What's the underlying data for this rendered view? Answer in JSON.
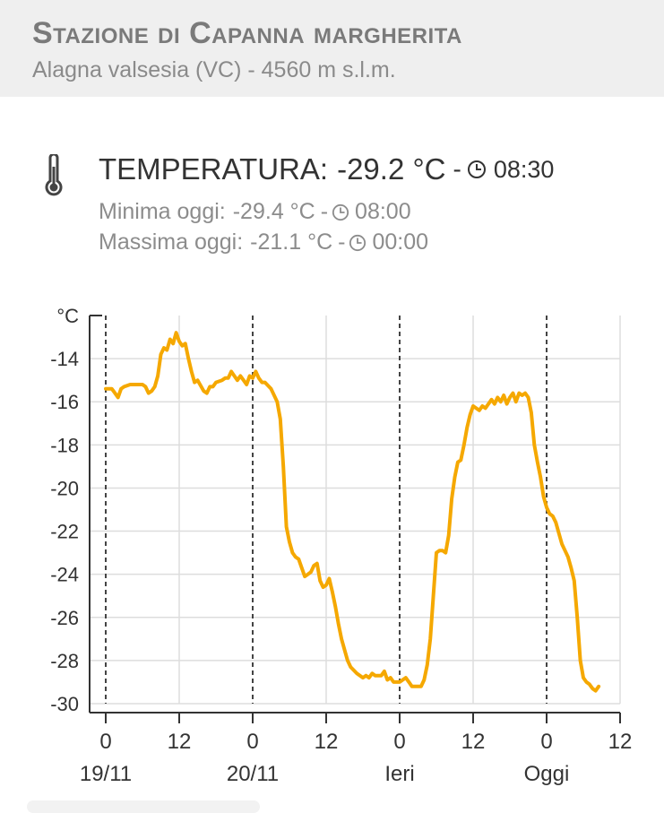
{
  "station": {
    "title": "Stazione di Capanna margherita",
    "subtitle": "Alagna valsesia (VC) - 4560 m s.l.m."
  },
  "temperature": {
    "label": "TEMPERATURA:",
    "value": "-29.2 °C",
    "separator": "-",
    "time": "08:30",
    "min_label": "Minima oggi:",
    "min_value": "-29.4 °C",
    "min_time": "08:00",
    "max_label": "Massima oggi:",
    "max_value": "-21.1 °C",
    "max_time": "00:00"
  },
  "icons": {
    "thermometer": "thermometer-icon",
    "clock": "clock-icon"
  },
  "colors": {
    "series": "#f5a800",
    "grid": "#dddddd",
    "axis": "#333333",
    "header_bg": "#efefef"
  },
  "chart_data": {
    "type": "line",
    "ylabel": "°C",
    "ylim": [
      -30,
      -12
    ],
    "yticks": [
      -14,
      -16,
      -18,
      -20,
      -22,
      -24,
      -26,
      -28,
      -30
    ],
    "xlim": [
      0,
      84
    ],
    "xticks": [
      {
        "x": 0,
        "label": "0"
      },
      {
        "x": 12,
        "label": "12"
      },
      {
        "x": 24,
        "label": "0"
      },
      {
        "x": 36,
        "label": "12"
      },
      {
        "x": 48,
        "label": "0"
      },
      {
        "x": 60,
        "label": "12"
      },
      {
        "x": 72,
        "label": "0"
      },
      {
        "x": 84,
        "label": "12"
      }
    ],
    "day_labels": [
      {
        "x": 0,
        "label": "19/11"
      },
      {
        "x": 24,
        "label": "20/11"
      },
      {
        "x": 48,
        "label": "Ieri"
      },
      {
        "x": 72,
        "label": "Oggi"
      }
    ],
    "day_dividers": [
      0,
      24,
      48,
      72
    ],
    "grid": true,
    "series": [
      {
        "points": [
          [
            0,
            -15.4
          ],
          [
            1,
            -15.4
          ],
          [
            1.5,
            -15.6
          ],
          [
            2,
            -15.8
          ],
          [
            2.5,
            -15.4
          ],
          [
            3,
            -15.3
          ],
          [
            4,
            -15.2
          ],
          [
            5,
            -15.2
          ],
          [
            6,
            -15.2
          ],
          [
            6.5,
            -15.3
          ],
          [
            7,
            -15.6
          ],
          [
            7.5,
            -15.5
          ],
          [
            8,
            -15.3
          ],
          [
            8.5,
            -14.8
          ],
          [
            9,
            -13.8
          ],
          [
            9.5,
            -13.5
          ],
          [
            10,
            -13.6
          ],
          [
            10.5,
            -13.1
          ],
          [
            11,
            -13.3
          ],
          [
            11.5,
            -12.8
          ],
          [
            12,
            -13.2
          ],
          [
            12.5,
            -13.4
          ],
          [
            13,
            -13.3
          ],
          [
            13.5,
            -14.0
          ],
          [
            14,
            -14.6
          ],
          [
            14.5,
            -15.1
          ],
          [
            15,
            -15.0
          ],
          [
            16,
            -15.5
          ],
          [
            16.5,
            -15.6
          ],
          [
            17,
            -15.3
          ],
          [
            17.5,
            -15.3
          ],
          [
            18,
            -15.1
          ],
          [
            19,
            -15.0
          ],
          [
            19.5,
            -14.9
          ],
          [
            20,
            -14.9
          ],
          [
            20.5,
            -14.6
          ],
          [
            21,
            -14.8
          ],
          [
            21.5,
            -15.0
          ],
          [
            22,
            -14.8
          ],
          [
            22.5,
            -15.0
          ],
          [
            23,
            -15.2
          ],
          [
            23.5,
            -14.8
          ],
          [
            24,
            -14.9
          ],
          [
            24.5,
            -14.6
          ],
          [
            25,
            -14.9
          ],
          [
            25.5,
            -15.1
          ],
          [
            26,
            -15.1
          ],
          [
            27,
            -15.4
          ],
          [
            28,
            -16.0
          ],
          [
            28.5,
            -16.8
          ],
          [
            29,
            -19.0
          ],
          [
            29.5,
            -21.8
          ],
          [
            30,
            -22.5
          ],
          [
            30.5,
            -23.0
          ],
          [
            31,
            -23.2
          ],
          [
            31.5,
            -23.3
          ],
          [
            32,
            -23.7
          ],
          [
            32.5,
            -24.1
          ],
          [
            33,
            -24.0
          ],
          [
            33.5,
            -23.9
          ],
          [
            34,
            -23.6
          ],
          [
            34.5,
            -23.5
          ],
          [
            35,
            -24.3
          ],
          [
            35.5,
            -24.6
          ],
          [
            36,
            -24.5
          ],
          [
            36.5,
            -24.2
          ],
          [
            37,
            -24.8
          ],
          [
            37.5,
            -25.5
          ],
          [
            38,
            -26.3
          ],
          [
            38.5,
            -27.0
          ],
          [
            39,
            -27.5
          ],
          [
            39.5,
            -28.0
          ],
          [
            40,
            -28.3
          ],
          [
            41,
            -28.6
          ],
          [
            42,
            -28.8
          ],
          [
            42.5,
            -28.7
          ],
          [
            43,
            -28.8
          ],
          [
            43.5,
            -28.6
          ],
          [
            44,
            -28.7
          ],
          [
            45,
            -28.7
          ],
          [
            45.5,
            -28.5
          ],
          [
            46,
            -28.9
          ],
          [
            46.5,
            -28.8
          ],
          [
            47,
            -29.0
          ],
          [
            48,
            -29.0
          ],
          [
            48.5,
            -28.9
          ],
          [
            49,
            -28.8
          ],
          [
            49.5,
            -29.0
          ],
          [
            50,
            -29.2
          ],
          [
            51,
            -29.2
          ],
          [
            51.5,
            -29.2
          ],
          [
            52,
            -28.9
          ],
          [
            52.5,
            -28.2
          ],
          [
            53,
            -27.0
          ],
          [
            53.5,
            -25.0
          ],
          [
            54,
            -23.0
          ],
          [
            54.5,
            -22.9
          ],
          [
            55,
            -22.9
          ],
          [
            55.5,
            -23.0
          ],
          [
            56,
            -22.2
          ],
          [
            56.5,
            -20.5
          ],
          [
            57,
            -19.5
          ],
          [
            57.5,
            -18.8
          ],
          [
            58,
            -18.7
          ],
          [
            58.5,
            -18.0
          ],
          [
            59,
            -17.2
          ],
          [
            59.5,
            -16.6
          ],
          [
            60,
            -16.2
          ],
          [
            60.5,
            -16.3
          ],
          [
            61,
            -16.4
          ],
          [
            61.5,
            -16.2
          ],
          [
            62,
            -16.3
          ],
          [
            62.5,
            -16.1
          ],
          [
            63,
            -15.9
          ],
          [
            63.5,
            -16.1
          ],
          [
            64,
            -15.8
          ],
          [
            64.5,
            -16.0
          ],
          [
            65,
            -15.7
          ],
          [
            65.5,
            -16.1
          ],
          [
            66,
            -15.8
          ],
          [
            66.5,
            -15.6
          ],
          [
            67,
            -16.0
          ],
          [
            67.5,
            -15.6
          ],
          [
            68,
            -15.7
          ],
          [
            68.5,
            -15.6
          ],
          [
            69,
            -15.8
          ],
          [
            69.5,
            -16.5
          ],
          [
            70,
            -18.0
          ],
          [
            70.5,
            -18.8
          ],
          [
            71,
            -19.5
          ],
          [
            71.5,
            -20.4
          ],
          [
            72,
            -20.9
          ],
          [
            72.5,
            -21.2
          ],
          [
            73,
            -21.3
          ],
          [
            73.5,
            -21.6
          ],
          [
            74,
            -22.1
          ],
          [
            74.5,
            -22.6
          ],
          [
            75,
            -22.9
          ],
          [
            75.5,
            -23.2
          ],
          [
            76,
            -23.7
          ],
          [
            76.5,
            -24.3
          ],
          [
            77,
            -26.0
          ],
          [
            77.5,
            -28.0
          ],
          [
            78,
            -28.8
          ],
          [
            78.5,
            -29.0
          ],
          [
            79,
            -29.1
          ],
          [
            79.5,
            -29.3
          ],
          [
            80,
            -29.4
          ],
          [
            80.5,
            -29.2
          ]
        ]
      }
    ]
  }
}
